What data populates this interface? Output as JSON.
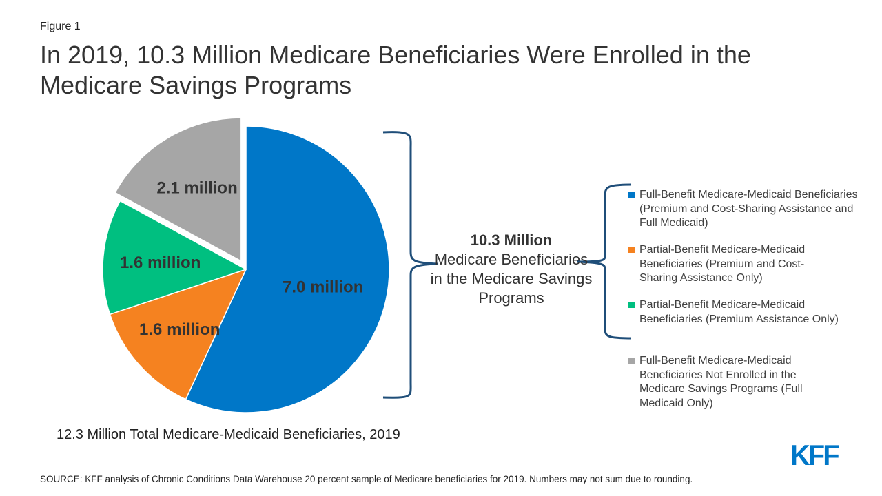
{
  "figure_label": "Figure 1",
  "title": "In 2019, 10.3 Million Medicare Beneficiaries Were Enrolled in the Medicare Savings Programs",
  "chart_data": {
    "type": "pie",
    "unit": "million",
    "slices": [
      {
        "label": "7.0 million",
        "value": 7.0,
        "color": "#0077c8",
        "legend": "Full-Benefit Medicare-Medicaid Beneficiaries (Premium and Cost-Sharing Assistance and Full Medicaid)",
        "exploded": false
      },
      {
        "label": "1.6 million",
        "value": 1.6,
        "color": "#f58220",
        "legend": "Partial-Benefit Medicare-Medicaid Beneficiaries (Premium and Cost-Sharing Assistance Only)",
        "exploded": false
      },
      {
        "label": "1.6 million",
        "value": 1.6,
        "color": "#00bf80",
        "legend": "Partial-Benefit Medicare-Medicaid Beneficiaries (Premium Assistance Only)",
        "exploded": false
      },
      {
        "label": "2.1 million",
        "value": 2.1,
        "color": "#a6a6a6",
        "legend": "Full-Benefit Medicare-Medicaid Beneficiaries Not Enrolled in the Medicare Savings Programs (Full Medicaid Only)",
        "exploded": true
      }
    ],
    "legend_position": "right"
  },
  "bracket_annotation": {
    "bold": "10.3 Million",
    "text": "Medicare Beneficiaries in the Medicare Savings Programs",
    "color": "#1f4e79"
  },
  "total_caption": "12.3 Million Total Medicare-Medicaid Beneficiaries, 2019",
  "source": "SOURCE: KFF analysis of Chronic Conditions Data Warehouse 20 percent sample of Medicare beneficiaries for 2019. Numbers may not sum due to rounding.",
  "logo": "KFF"
}
